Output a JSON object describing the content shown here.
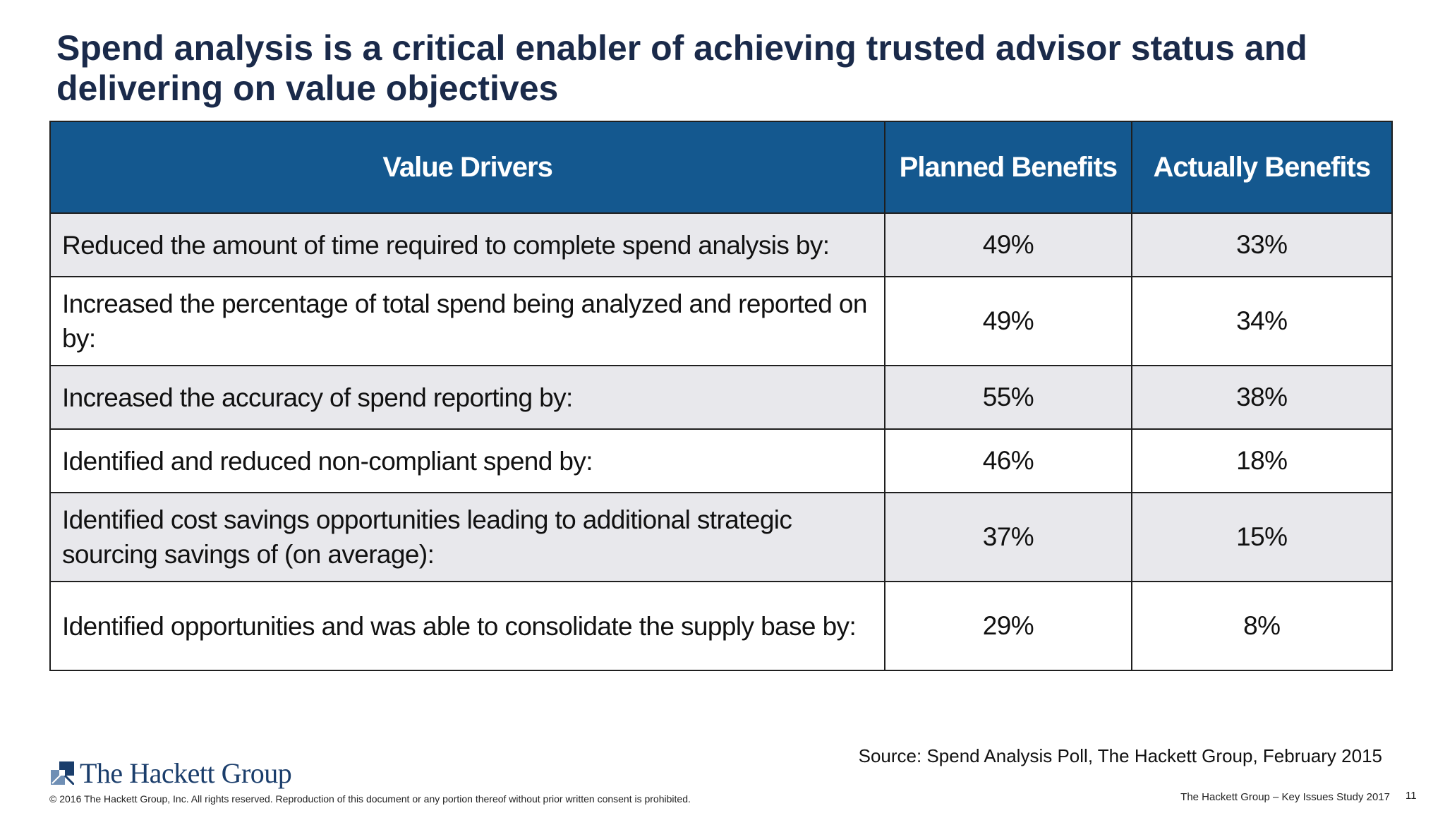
{
  "title": "Spend analysis is a critical enabler of achieving trusted advisor status and delivering on value objectives",
  "table": {
    "headers": {
      "driver": "Value Drivers",
      "planned": "Planned Benefits",
      "actual": "Actually Benefits"
    },
    "rows": [
      {
        "driver": "Reduced the amount of time required to complete spend analysis by:",
        "planned": "49%",
        "actual": "33%"
      },
      {
        "driver": "Increased the percentage of total spend being analyzed and reported on by:",
        "planned": "49%",
        "actual": "34%"
      },
      {
        "driver": "Increased the accuracy of spend reporting by:",
        "planned": "55%",
        "actual": "38%"
      },
      {
        "driver": "Identified and reduced non-compliant spend by:",
        "planned": "46%",
        "actual": "18%"
      },
      {
        "driver": "Identified cost savings opportunities leading to additional strategic sourcing savings of (on average):",
        "planned": "37%",
        "actual": "15%"
      },
      {
        "driver": "Identified opportunities and was able to consolidate the supply base by:",
        "planned": "29%",
        "actual": "8%"
      }
    ]
  },
  "source": "Source: Spend Analysis Poll, The Hackett Group, February 2015",
  "footer": {
    "logo_text": "The Hackett Group",
    "copyright": "© 2016 The Hackett Group, Inc. All rights reserved. Reproduction of this document or any portion thereof without prior written consent is prohibited.",
    "study": "The Hackett Group – Key Issues Study 2017",
    "page_number": "11"
  },
  "colors": {
    "header_bg": "#14588f",
    "title": "#1a2a4a",
    "row_shade": "#e8e8ec",
    "logo": "#1a3d6b"
  }
}
